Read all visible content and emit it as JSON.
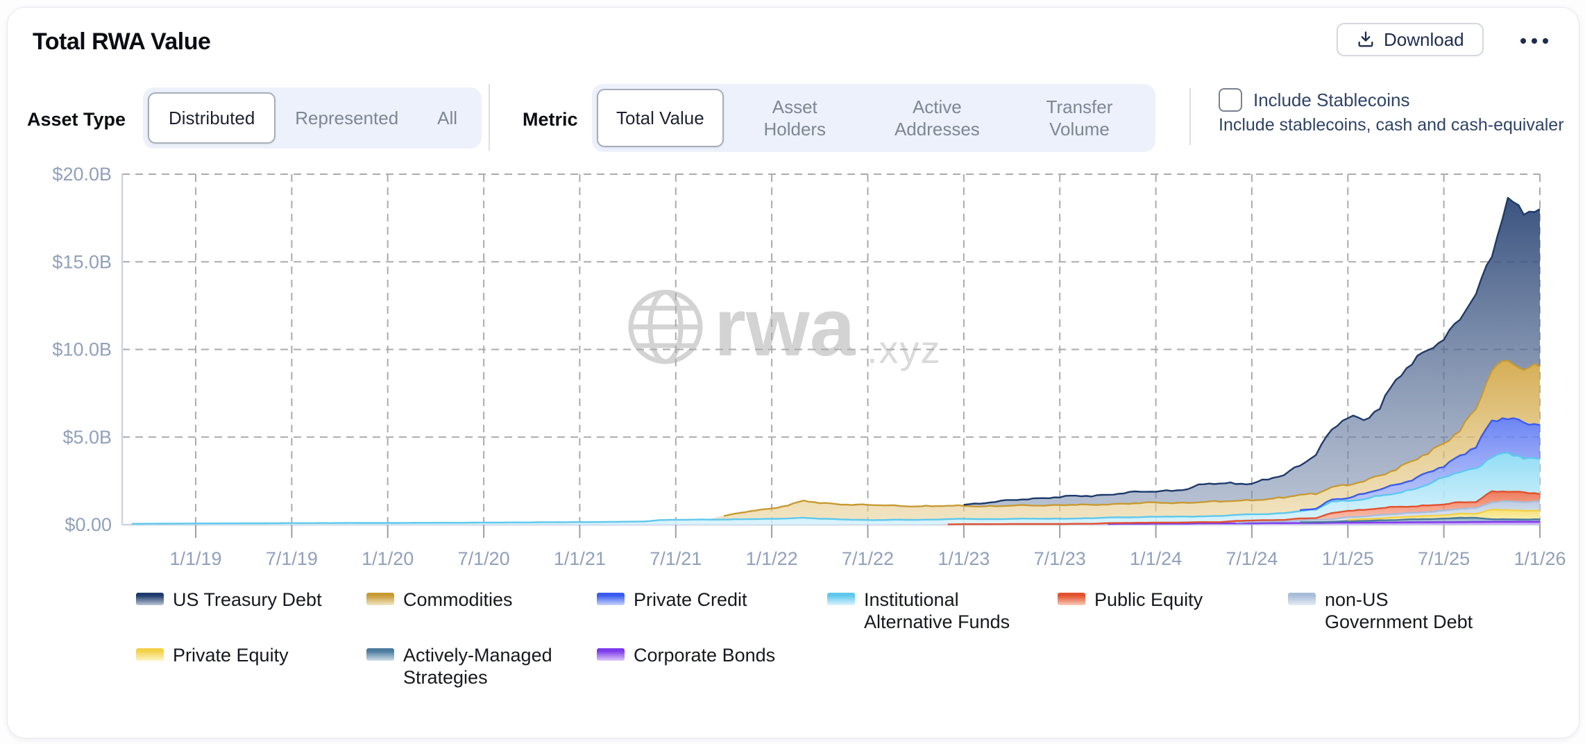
{
  "header": {
    "title": "Total RWA Value",
    "download_label": "Download",
    "download_icon": "download-icon",
    "more_icon": "ellipsis-icon"
  },
  "controls": {
    "asset_type": {
      "label": "Asset Type",
      "options": [
        {
          "label": "Distributed",
          "selected": true
        },
        {
          "label": "Represented",
          "selected": false
        },
        {
          "label": "All",
          "selected": false
        }
      ]
    },
    "metric": {
      "label": "Metric",
      "options": [
        {
          "label": "Total Value",
          "selected": true
        },
        {
          "label": "Asset Holders",
          "selected": false
        },
        {
          "label": "Active Addresses",
          "selected": false
        },
        {
          "label": "Transfer Volume",
          "selected": false
        }
      ]
    },
    "stablecoins": {
      "checkbox_label": "Include Stablecoins",
      "description": "Include stablecoins, cash and cash-equivaler",
      "checked": false
    }
  },
  "watermark": {
    "icon": "globe-icon",
    "text": "rwa",
    "suffix": ".xyz"
  },
  "chart_data": {
    "type": "area",
    "stacked": true,
    "title": "Total RWA Value",
    "y_unit": "USD billions",
    "ylim": [
      0,
      20
    ],
    "grid": "dashed",
    "legend_position": "bottom",
    "x_interval": "monthly",
    "x_monthly_start": "2018-09",
    "x_monthly_end": "2026-01",
    "x_tick_labels": [
      "1/1/19",
      "7/1/19",
      "1/1/20",
      "7/1/20",
      "1/1/21",
      "7/1/21",
      "1/1/22",
      "7/1/22",
      "1/1/23",
      "7/1/23",
      "1/1/24",
      "7/1/24",
      "1/1/25",
      "7/1/25",
      "1/1/26"
    ],
    "y_tick_labels": [
      "$20.0B",
      "$15.0B",
      "$10.0B",
      "$5.0B",
      "$0.00"
    ],
    "y_tick_values": [
      20,
      15,
      10,
      5,
      0
    ],
    "stack_order_bottom_to_top": [
      "Corporate Bonds",
      "Actively-Managed Strategies",
      "Private Equity",
      "non-US Government Debt",
      "Public Equity",
      "Institutional Alternative Funds",
      "Private Credit",
      "Commodities",
      "US Treasury Debt"
    ],
    "series": [
      {
        "name": "US Treasury Debt",
        "color": "#1d3a6b",
        "fill_top": "rgba(41,68,116,0.92)",
        "fill_bottom": "rgba(132,149,179,0.55)",
        "values": [
          0,
          0,
          0,
          0,
          0,
          0,
          0,
          0,
          0,
          0,
          0,
          0,
          0,
          0,
          0,
          0,
          0,
          0,
          0,
          0,
          0,
          0,
          0,
          0,
          0,
          0,
          0,
          0,
          0,
          0,
          0,
          0,
          0,
          0,
          0,
          0,
          0,
          0,
          0,
          0,
          0,
          0,
          0,
          0,
          0,
          0,
          0,
          0,
          0,
          0,
          0,
          0,
          0.08,
          0.15,
          0.25,
          0.32,
          0.38,
          0.42,
          0.45,
          0.5,
          0.53,
          0.55,
          0.6,
          0.63,
          0.65,
          0.72,
          0.78,
          1.0,
          1.05,
          1.0,
          0.95,
          1.1,
          1.3,
          1.7,
          2.3,
          3.2,
          3.9,
          3.5,
          4.0,
          5.0,
          5.6,
          5.9,
          6.1,
          6.2,
          6.6,
          6.5,
          9.4,
          8.8,
          8.9
        ]
      },
      {
        "name": "Commodities",
        "color": "#c79a33",
        "fill_top": "rgba(208,163,62,0.88)",
        "fill_bottom": "rgba(233,211,155,0.6)",
        "values": [
          0,
          0,
          0,
          0,
          0,
          0,
          0,
          0,
          0,
          0,
          0,
          0,
          0,
          0,
          0,
          0,
          0,
          0,
          0,
          0,
          0,
          0,
          0,
          0,
          0,
          0,
          0,
          0,
          0,
          0,
          0,
          0,
          0,
          0,
          0,
          0,
          0,
          0.2,
          0.35,
          0.5,
          0.6,
          0.75,
          0.95,
          0.9,
          0.88,
          0.86,
          0.85,
          0.83,
          0.8,
          0.78,
          0.76,
          0.75,
          0.75,
          0.74,
          0.73,
          0.74,
          0.76,
          0.77,
          0.78,
          0.77,
          0.76,
          0.77,
          0.78,
          0.79,
          0.8,
          0.79,
          0.8,
          0.81,
          0.81,
          0.82,
          0.82,
          0.84,
          0.86,
          0.9,
          0.85,
          0.72,
          0.7,
          0.75,
          0.8,
          0.9,
          1.0,
          1.15,
          1.3,
          1.55,
          2.0,
          3.0,
          3.3,
          3.15,
          3.2
        ]
      },
      {
        "name": "Private Credit",
        "color": "#3a5bf0",
        "fill_top": "rgba(87,115,242,0.88)",
        "fill_bottom": "rgba(173,189,249,0.65)",
        "values": [
          0,
          0,
          0,
          0,
          0,
          0,
          0,
          0,
          0,
          0,
          0,
          0,
          0,
          0,
          0,
          0,
          0,
          0,
          0,
          0,
          0,
          0,
          0,
          0,
          0,
          0,
          0,
          0,
          0,
          0,
          0,
          0,
          0,
          0,
          0,
          0,
          0,
          0,
          0,
          0,
          0,
          0,
          0,
          0,
          0,
          0,
          0,
          0,
          0,
          0,
          0,
          0,
          0,
          0,
          0,
          0,
          0,
          0,
          0,
          0,
          0,
          0,
          0,
          0,
          0,
          0,
          0,
          0,
          0,
          0,
          0,
          0,
          0,
          0.05,
          0.07,
          0.1,
          0.15,
          0.3,
          0.4,
          0.5,
          0.55,
          0.62,
          0.7,
          0.9,
          1.3,
          1.9,
          2.1,
          2.0,
          2.1
        ]
      },
      {
        "name": "Institutional Alternative Funds",
        "color": "#5ec8ec",
        "fill_top": "rgba(141,219,244,0.95)",
        "fill_bottom": "rgba(213,241,252,0.85)",
        "values": [
          0.05,
          0.055,
          0.06,
          0.065,
          0.07,
          0.072,
          0.075,
          0.078,
          0.08,
          0.085,
          0.09,
          0.092,
          0.094,
          0.096,
          0.098,
          0.1,
          0.1,
          0.103,
          0.106,
          0.11,
          0.113,
          0.116,
          0.12,
          0.125,
          0.13,
          0.135,
          0.14,
          0.145,
          0.15,
          0.155,
          0.16,
          0.17,
          0.18,
          0.27,
          0.28,
          0.285,
          0.29,
          0.3,
          0.31,
          0.32,
          0.33,
          0.36,
          0.4,
          0.34,
          0.31,
          0.29,
          0.27,
          0.27,
          0.28,
          0.28,
          0.29,
          0.3,
          0.3,
          0.29,
          0.29,
          0.3,
          0.3,
          0.3,
          0.3,
          0.31,
          0.31,
          0.32,
          0.32,
          0.33,
          0.33,
          0.34,
          0.33,
          0.34,
          0.34,
          0.35,
          0.35,
          0.36,
          0.38,
          0.42,
          0.48,
          0.7,
          0.55,
          0.6,
          0.7,
          0.8,
          0.95,
          1.2,
          1.5,
          1.8,
          1.9,
          2.0,
          2.1,
          2.05,
          1.95
        ]
      },
      {
        "name": "Public Equity",
        "color": "#e2512e",
        "fill_top": "rgba(235,108,73,0.9)",
        "fill_bottom": "rgba(248,183,161,0.75)",
        "values": [
          0,
          0,
          0,
          0,
          0,
          0,
          0,
          0,
          0,
          0,
          0,
          0,
          0,
          0,
          0,
          0,
          0,
          0,
          0,
          0,
          0,
          0,
          0,
          0,
          0,
          0,
          0,
          0,
          0,
          0,
          0,
          0,
          0,
          0,
          0,
          0,
          0,
          0,
          0,
          0,
          0,
          0,
          0,
          0,
          0,
          0,
          0,
          0,
          0,
          0,
          0,
          0.02,
          0.03,
          0.03,
          0.03,
          0.04,
          0.04,
          0.04,
          0.04,
          0.05,
          0.05,
          0.05,
          0.05,
          0.06,
          0.06,
          0.06,
          0.07,
          0.07,
          0.07,
          0.08,
          0.08,
          0.08,
          0.09,
          0.1,
          0.1,
          0.35,
          0.38,
          0.36,
          0.38,
          0.4,
          0.38,
          0.36,
          0.35,
          0.36,
          0.38,
          0.6,
          0.55,
          0.52,
          0.5
        ]
      },
      {
        "name": "non-US Government Debt",
        "color": "#a9bdd9",
        "fill_top": "rgba(186,201,225,0.95)",
        "fill_bottom": "rgba(225,233,244,0.9)",
        "values": [
          0,
          0,
          0,
          0,
          0,
          0,
          0,
          0,
          0,
          0,
          0,
          0,
          0,
          0,
          0,
          0,
          0,
          0,
          0,
          0,
          0,
          0,
          0,
          0,
          0,
          0,
          0,
          0,
          0,
          0,
          0,
          0,
          0,
          0,
          0,
          0,
          0,
          0,
          0,
          0,
          0,
          0,
          0,
          0,
          0,
          0,
          0,
          0,
          0,
          0,
          0,
          0,
          0,
          0,
          0,
          0,
          0,
          0,
          0,
          0,
          0,
          0,
          0,
          0,
          0,
          0,
          0,
          0,
          0,
          0.05,
          0.08,
          0.09,
          0.1,
          0.11,
          0.12,
          0.14,
          0.15,
          0.16,
          0.18,
          0.2,
          0.22,
          0.24,
          0.25,
          0.28,
          0.32,
          0.45,
          0.48,
          0.5,
          0.5
        ]
      },
      {
        "name": "Private Equity",
        "color": "#f2d147",
        "fill_top": "rgba(246,223,112,0.95)",
        "fill_bottom": "rgba(252,242,193,0.9)",
        "values": [
          0,
          0,
          0,
          0,
          0,
          0,
          0,
          0,
          0,
          0,
          0,
          0,
          0,
          0,
          0,
          0,
          0,
          0,
          0,
          0,
          0,
          0,
          0,
          0,
          0,
          0,
          0,
          0,
          0,
          0,
          0,
          0,
          0,
          0,
          0,
          0,
          0,
          0,
          0,
          0,
          0,
          0,
          0,
          0,
          0,
          0,
          0,
          0,
          0,
          0,
          0,
          0,
          0,
          0,
          0,
          0,
          0,
          0,
          0,
          0,
          0,
          0,
          0,
          0,
          0,
          0,
          0,
          0,
          0,
          0,
          0,
          0,
          0,
          0,
          0,
          0,
          0.08,
          0.1,
          0.12,
          0.14,
          0.16,
          0.18,
          0.2,
          0.22,
          0.24,
          0.55,
          0.55,
          0.48,
          0.5
        ]
      },
      {
        "name": "Actively-Managed Strategies",
        "color": "#4a7a9d",
        "fill_top": "rgba(113,156,186,0.9)",
        "fill_bottom": "rgba(186,207,222,0.7)",
        "values": [
          0,
          0,
          0,
          0,
          0,
          0,
          0,
          0,
          0,
          0,
          0,
          0,
          0,
          0,
          0,
          0,
          0,
          0,
          0,
          0,
          0,
          0,
          0,
          0,
          0,
          0,
          0,
          0,
          0,
          0,
          0,
          0,
          0,
          0,
          0,
          0,
          0,
          0,
          0,
          0,
          0,
          0,
          0,
          0,
          0,
          0,
          0,
          0,
          0,
          0,
          0,
          0,
          0,
          0,
          0,
          0,
          0,
          0,
          0,
          0,
          0,
          0,
          0,
          0,
          0,
          0,
          0,
          0,
          0,
          0,
          0,
          0,
          0,
          0.04,
          0.05,
          0.06,
          0.08,
          0.1,
          0.12,
          0.14,
          0.16,
          0.18,
          0.2,
          0.25,
          0.22,
          0.15,
          0.14,
          0.13,
          0.13
        ]
      },
      {
        "name": "Corporate Bonds",
        "color": "#7c3aed",
        "fill_top": "rgba(162,104,237,0.9)",
        "fill_bottom": "rgba(210,182,246,0.75)",
        "values": [
          0,
          0,
          0,
          0,
          0,
          0,
          0,
          0,
          0,
          0,
          0,
          0,
          0,
          0,
          0,
          0,
          0,
          0,
          0,
          0,
          0,
          0,
          0,
          0,
          0,
          0,
          0,
          0,
          0,
          0,
          0,
          0,
          0,
          0,
          0,
          0,
          0,
          0,
          0,
          0,
          0,
          0,
          0,
          0,
          0,
          0,
          0,
          0,
          0,
          0,
          0,
          0,
          0,
          0,
          0,
          0,
          0,
          0,
          0,
          0,
          0,
          0.04,
          0.05,
          0.05,
          0.06,
          0.06,
          0.06,
          0.08,
          0.08,
          0.08,
          0.08,
          0.09,
          0.09,
          0.1,
          0.1,
          0.11,
          0.12,
          0.12,
          0.13,
          0.13,
          0.14,
          0.14,
          0.15,
          0.15,
          0.16,
          0.16,
          0.17,
          0.17,
          0.17
        ]
      }
    ],
    "colors": {
      "axis_text": "#90a0ba",
      "grid_dash": "#ababab",
      "axis_line": "#ccd3e4",
      "tick": "#9aa0a8",
      "watermark": "#d3d3d3"
    }
  }
}
